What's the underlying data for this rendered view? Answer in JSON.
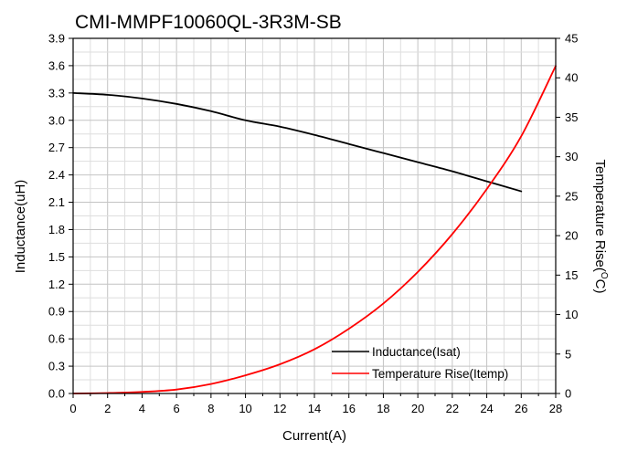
{
  "chart_data": {
    "type": "line",
    "title": "CMI-MMPF10060QL-3R3M-SB",
    "xlabel": "Current(A)",
    "ylabel_left": "Inductance(uH)",
    "ylabel_right_main": "Temperature Rise(",
    "ylabel_right_sup": "O",
    "ylabel_right_tail": "C)",
    "xlim": [
      0,
      28
    ],
    "ylim_left": [
      0,
      3.9
    ],
    "ylim_right": [
      0,
      45
    ],
    "x_ticks": [
      "0",
      "2",
      "4",
      "6",
      "8",
      "10",
      "12",
      "14",
      "16",
      "18",
      "20",
      "22",
      "24",
      "26",
      "28"
    ],
    "y_left_ticks": [
      "0.0",
      "0.3",
      "0.6",
      "0.9",
      "1.2",
      "1.5",
      "1.8",
      "2.1",
      "2.4",
      "2.7",
      "3.0",
      "3.3",
      "3.6",
      "3.9"
    ],
    "y_right_ticks": [
      "0",
      "5",
      "10",
      "15",
      "20",
      "25",
      "30",
      "35",
      "40",
      "45"
    ],
    "grid": true,
    "legend_position": "bottom-right",
    "series": [
      {
        "name": "Inductance(Isat)",
        "axis": "left",
        "color": "#000000",
        "x": [
          0,
          2,
          4,
          6,
          8,
          10,
          12,
          14,
          16,
          18,
          20,
          22,
          24,
          26
        ],
        "y": [
          3.3,
          3.28,
          3.24,
          3.18,
          3.1,
          3.0,
          2.93,
          2.84,
          2.74,
          2.64,
          2.54,
          2.44,
          2.33,
          2.22
        ]
      },
      {
        "name": "Temperature Rise(Itemp)",
        "axis": "right",
        "color": "#ff0000",
        "x": [
          0,
          2,
          4,
          6,
          8,
          10,
          12,
          14,
          16,
          18,
          20,
          22,
          24,
          26,
          28
        ],
        "y": [
          0,
          0.06,
          0.2,
          0.5,
          1.2,
          2.3,
          3.7,
          5.6,
          8.2,
          11.4,
          15.4,
          20.2,
          25.9,
          32.6,
          41.5
        ]
      }
    ]
  }
}
